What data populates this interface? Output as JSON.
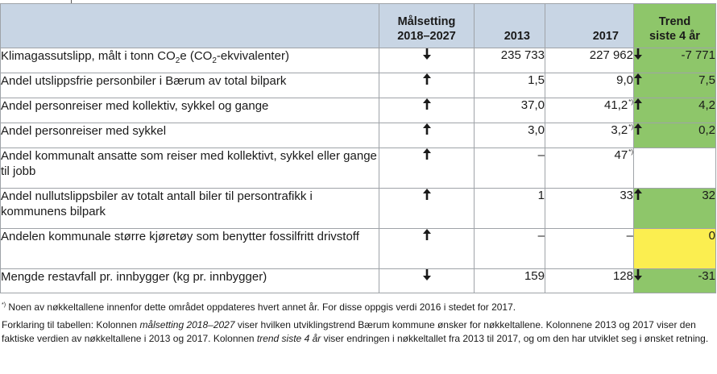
{
  "table": {
    "headers": {
      "indicator": "",
      "goal_line1": "Målsetting",
      "goal_line2": "2018–2027",
      "y2013": "2013",
      "y2017": "2017",
      "trend_line1": "Trend",
      "trend_line2": "siste 4 år"
    },
    "co2_row": {
      "part1": "Klimagassutslipp, målt i tonn CO",
      "sub1": "2",
      "part2": "e (CO",
      "sub2": "2",
      "part3": "-ekvivalenter)"
    },
    "rows": [
      {
        "label": "Klimagassutslipp, målt i tonn CO2e (CO2-ekvivalenter)",
        "goal": "down",
        "v2013": "235 733",
        "v2017": "227 962",
        "fn2017": "",
        "trend_dir": "down",
        "trend": "-7 771",
        "trend_color": "#8ec66a"
      },
      {
        "label": "Andel utslippsfrie personbiler i Bærum av total bilpark",
        "goal": "up",
        "v2013": "1,5",
        "v2017": "9,0",
        "fn2017": "",
        "trend_dir": "up",
        "trend": "7,5",
        "trend_color": "#8ec66a"
      },
      {
        "label": "Andel personreiser med kollektiv, sykkel og gange",
        "goal": "up",
        "v2013": "37,0",
        "v2017": "41,2",
        "fn2017": "*)",
        "trend_dir": "up",
        "trend": "4,2",
        "trend_color": "#8ec66a"
      },
      {
        "label": "Andel personreiser med sykkel",
        "goal": "up",
        "v2013": "3,0",
        "v2017": "3,2",
        "fn2017": "*)",
        "trend_dir": "up",
        "trend": "0,2",
        "trend_color": "#8ec66a"
      },
      {
        "label": "Andel kommunalt ansatte som reiser med kollektivt, sykkel eller gange til jobb",
        "goal": "up",
        "v2013": "–",
        "v2017": "47",
        "fn2017": "*)",
        "trend_dir": "",
        "trend": "",
        "trend_color": "#ffffff"
      },
      {
        "label": "Andel nullutslippsbiler av totalt antall biler til persontrafikk i kommunens bilpark",
        "goal": "up",
        "v2013": "1",
        "v2017": "33",
        "fn2017": "",
        "trend_dir": "up",
        "trend": "32",
        "trend_color": "#8ec66a"
      },
      {
        "label": "Andelen kommunale større kjøretøy som benytter fossilfritt drivstoff",
        "goal": "up",
        "v2013": "–",
        "v2017": "–",
        "fn2017": "",
        "trend_dir": "",
        "trend": "0",
        "trend_color": "#fbee50"
      },
      {
        "label": "Mengde restavfall pr. innbygger (kg pr. innbygger)",
        "goal": "down",
        "v2013": "159",
        "v2017": "128",
        "fn2017": "",
        "trend_dir": "down",
        "trend": "-31",
        "trend_color": "#8ec66a"
      }
    ]
  },
  "notes": {
    "fn_mark": "*)",
    "fn_text": " Noen av nøkkeltallene innenfor dette området oppdateres hvert annet år. For disse oppgis verdi 2016 i stedet for 2017.",
    "expl_a": "Forklaring til tabellen: Kolonnen ",
    "expl_b": "målsetting 2018–2027",
    "expl_c": " viser hvilken utviklingstrend Bærum kommune ønsker for nøkkeltallene. Kolonnene 2013 og 2017 viser den faktiske verdien av nøkkeltallene i 2013 og 2017. Kolonnen ",
    "expl_d": "trend siste 4 år",
    "expl_e": " viser endringen i nøkkeltallet fra 2013 til 2017, og om den har utviklet seg i ønsket retning."
  },
  "icons": {
    "up": "arrow-up-icon",
    "down": "arrow-down-icon"
  }
}
